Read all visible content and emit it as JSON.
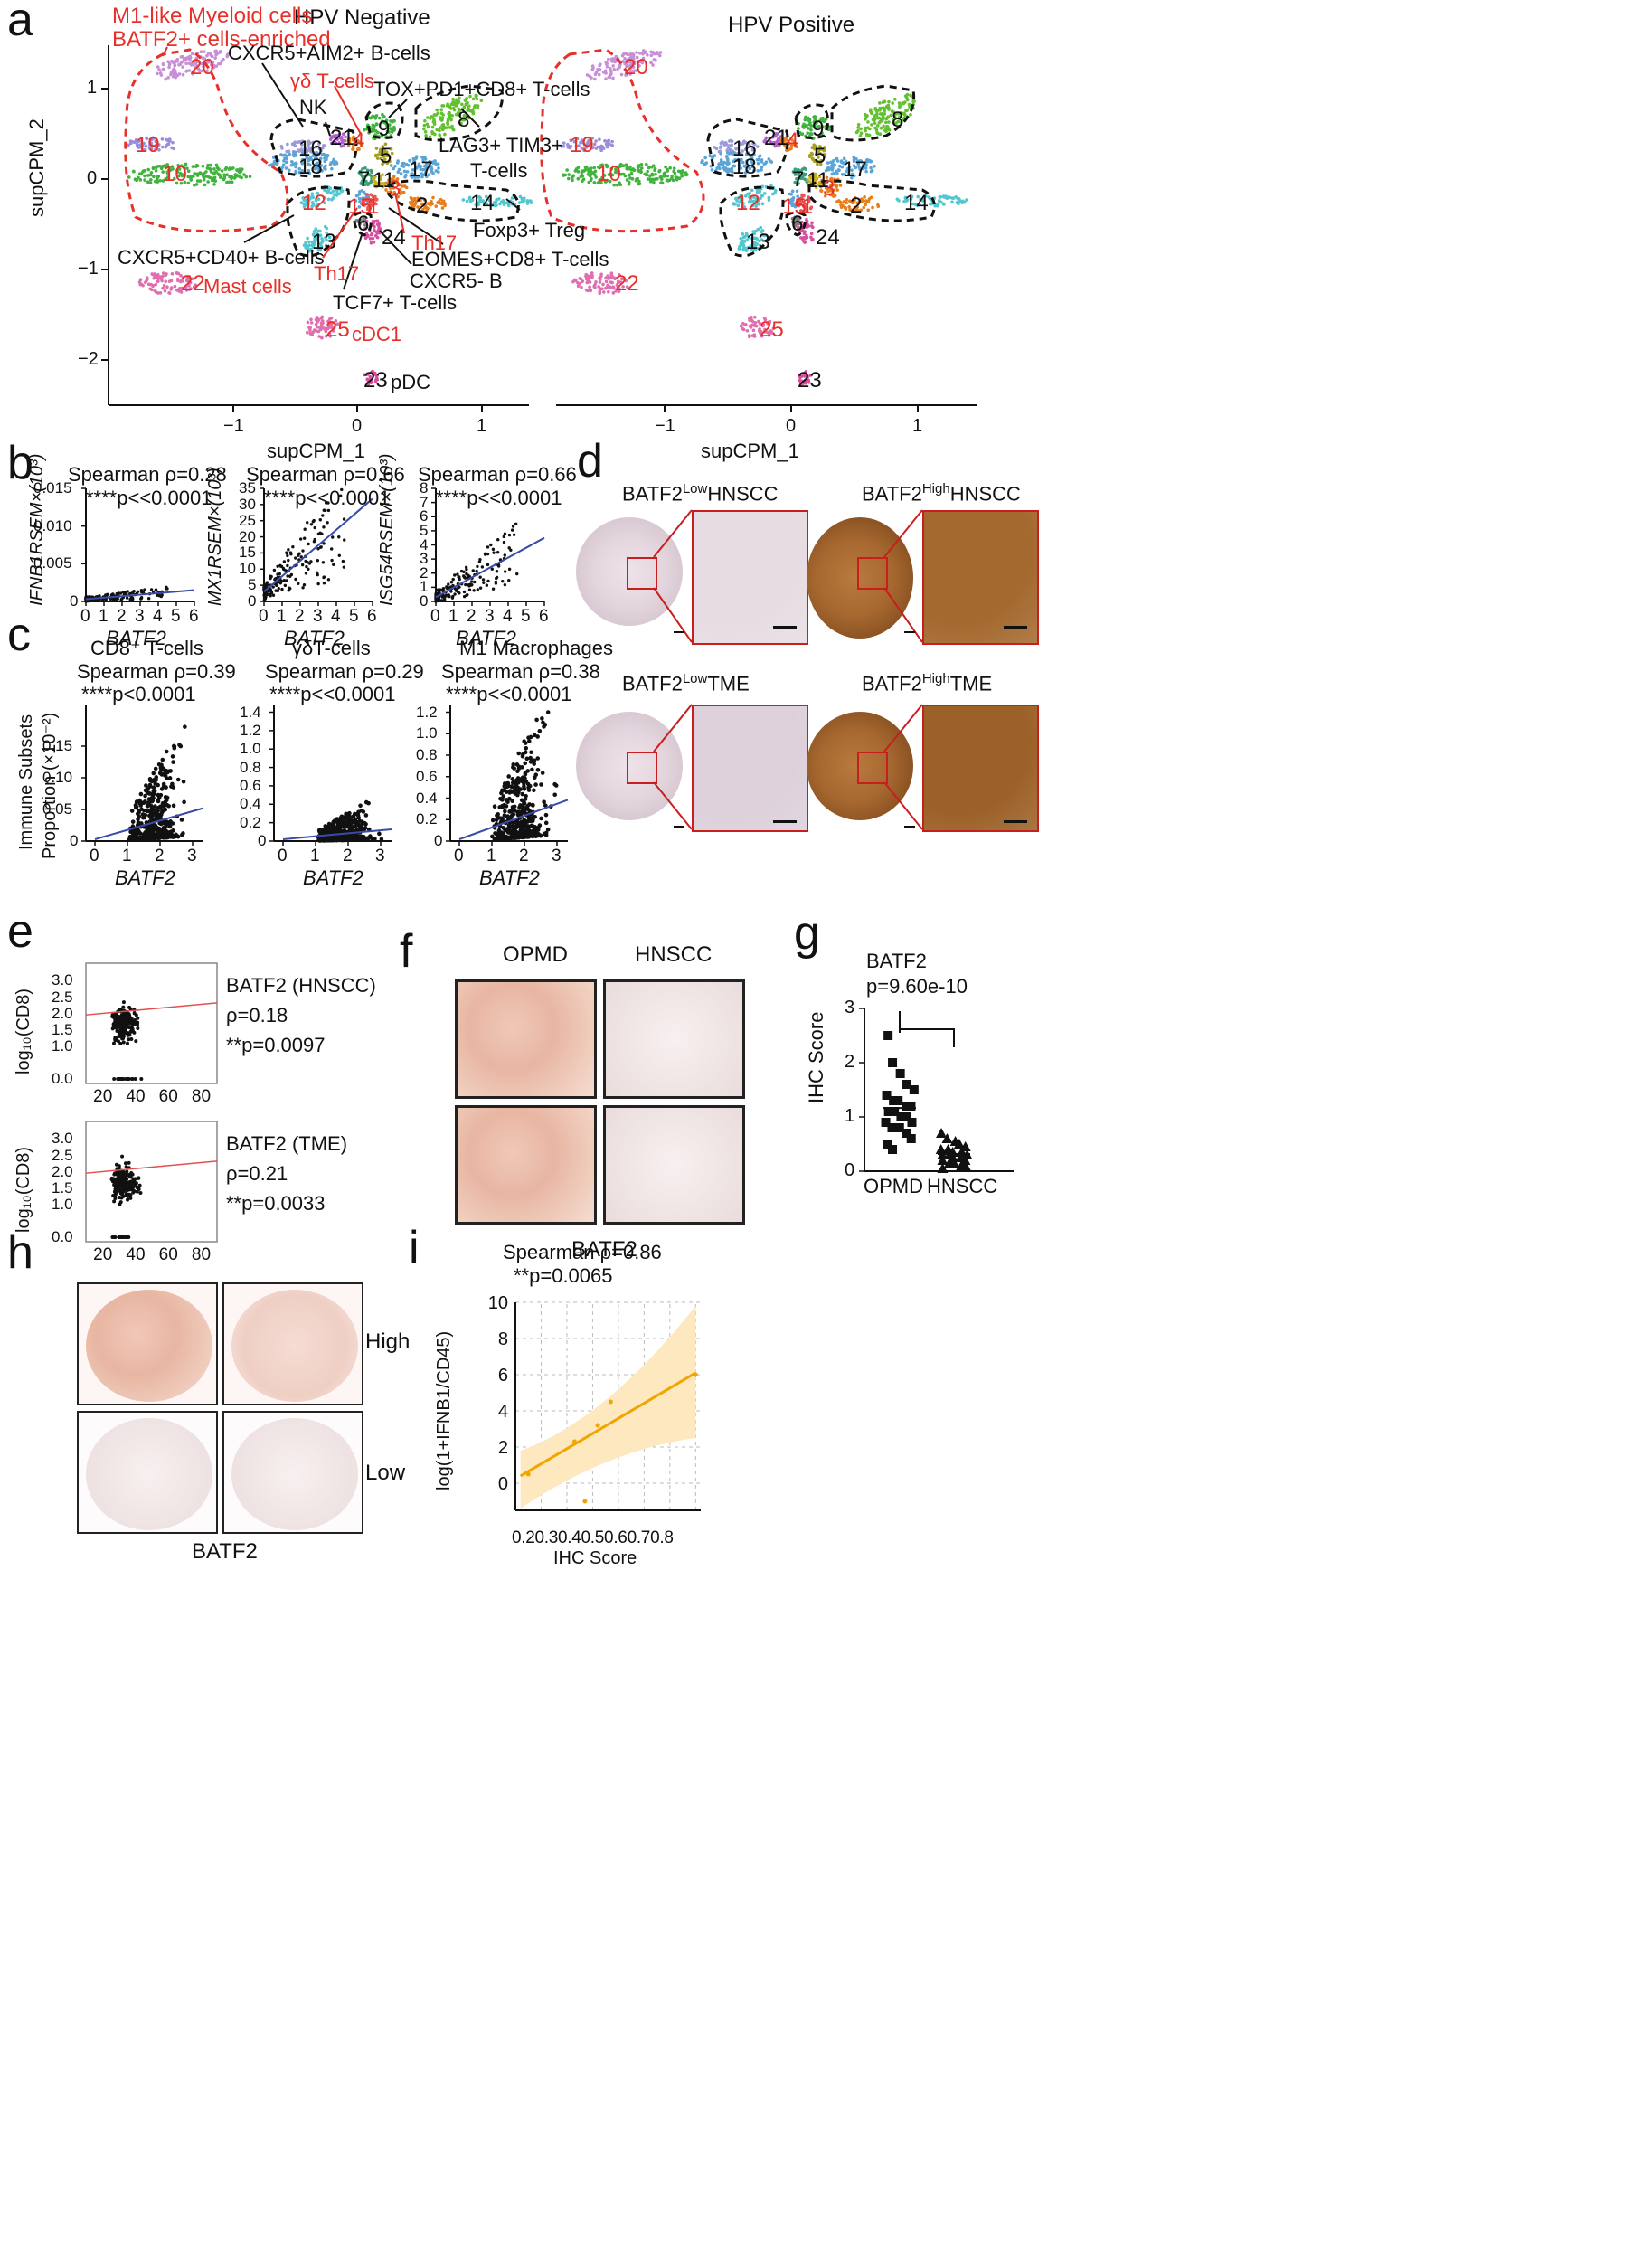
{
  "panels": {
    "a": "a",
    "b": "b",
    "c": "c",
    "d": "d",
    "e": "e",
    "f": "f",
    "g": "g",
    "h": "h",
    "i": "i"
  },
  "panel_a": {
    "title_left": "HPV Negative",
    "title_right": "HPV Positive",
    "xlabel": "supCPM_1",
    "ylabel": "supCPM_2",
    "yticks": [
      "1",
      "0",
      "−1",
      "−2"
    ],
    "xticks": [
      "−1",
      "0",
      "1"
    ],
    "clusters_left": [
      "20",
      "19",
      "10",
      "16",
      "18",
      "21",
      "4",
      "9",
      "8",
      "5",
      "17",
      "7",
      "11",
      "3",
      "2",
      "14",
      "12",
      "15",
      "1",
      "13",
      "6",
      "24",
      "22",
      "25",
      "23"
    ],
    "clusters_right": [
      "20",
      "19",
      "10",
      "16",
      "18",
      "21",
      "4",
      "9",
      "8",
      "5",
      "17",
      "7",
      "11",
      "3",
      "2",
      "14",
      "12",
      "15",
      "1",
      "13",
      "6",
      "24",
      "22",
      "25",
      "23"
    ],
    "annotations": {
      "m1_myeloid": "M1-like Myeloid cells",
      "batf2_enriched": "BATF2+ cells-enriched",
      "cxcr5_aim2": "CXCR5+AIM2+ B-cells",
      "gd_tcells": "γδ T-cells",
      "nk": "NK",
      "tox": "TOX+PD1+CD8+ T-cells",
      "lag3": "LAG3+ TIM3+",
      "tcells": "T-cells",
      "foxp3": "Foxp3+ Treg",
      "th17_right": "Th17",
      "eomes": "EOMES+CD8+ T-cells",
      "cxcr5_cd40": "CXCR5+CD40+ B-cells",
      "th17_left": "Th17",
      "cxcr5_neg": "CXCR5- B",
      "mast": "Mast cells",
      "tcf7": "TCF7+ T-cells",
      "cdc1": "cDC1",
      "pdc": "pDC"
    },
    "colors": {
      "red": "#e8302a",
      "black": "#111111"
    }
  },
  "panel_b": {
    "plots": [
      {
        "title1": "Spearman ρ=0.28",
        "title2": "****p<<0.0001",
        "ylabel": "IFNB1RSEM×(10³)",
        "xlabel": "BATF2",
        "yticks": [
          "0",
          "0.005",
          "0.010",
          "0.015"
        ],
        "xticks": [
          "0",
          "1",
          "2",
          "3",
          "4",
          "5",
          "6"
        ]
      },
      {
        "title1": "Spearman ρ=0.66",
        "title2": "****p<<0.0001",
        "ylabel": "MX1RSEM×(10³)",
        "xlabel": "BATF2",
        "yticks": [
          "0",
          "5",
          "10",
          "15",
          "20",
          "25",
          "30",
          "35"
        ],
        "xticks": [
          "0",
          "1",
          "2",
          "3",
          "4",
          "5",
          "6"
        ]
      },
      {
        "title1": "Spearman ρ=0.66",
        "title2": "****p<<0.0001",
        "ylabel": "ISG54RSEM×(10³)",
        "xlabel": "BATF2",
        "yticks": [
          "0",
          "1",
          "2",
          "3",
          "4",
          "5",
          "6",
          "7",
          "8"
        ],
        "xticks": [
          "0",
          "1",
          "2",
          "3",
          "4",
          "5",
          "6"
        ]
      }
    ]
  },
  "panel_c": {
    "ylabel1": "Immune Subsets",
    "ylabel2": "Proportion (×10⁻²)",
    "plots": [
      {
        "subtitle": "CD8⁺ T-cells",
        "title1": "Spearman ρ=0.39",
        "title2": "****p<0.0001",
        "xlabel": "BATF2",
        "yticks": [
          "0",
          "0.05",
          "0.10",
          "0.15"
        ],
        "xticks": [
          "0",
          "1",
          "2",
          "3"
        ]
      },
      {
        "subtitle": "γδT-cells",
        "title1": "Spearman ρ=0.29",
        "title2": "****p<<0.0001",
        "xlabel": "BATF2",
        "yticks": [
          "0",
          "0.2",
          "0.4",
          "0.6",
          "0.8",
          "1.0",
          "1.2",
          "1.4"
        ],
        "xticks": [
          "0",
          "1",
          "2",
          "3"
        ]
      },
      {
        "subtitle": "M1 Macrophages",
        "title1": "Spearman ρ=0.38",
        "title2": "****p<<0.0001",
        "xlabel": "BATF2",
        "yticks": [
          "0",
          "0.2",
          "0.4",
          "0.6",
          "0.8",
          "1.0",
          "1.2"
        ],
        "xticks": [
          "0",
          "1",
          "2",
          "3"
        ]
      }
    ]
  },
  "panel_d": {
    "labels": [
      {
        "base": "BATF2",
        "sup": "Low",
        "rest": "HNSCC"
      },
      {
        "base": "BATF2",
        "sup": "High",
        "rest": "HNSCC"
      },
      {
        "base": "BATF2",
        "sup": "Low",
        "rest": "TME"
      },
      {
        "base": "BATF2",
        "sup": "High",
        "rest": "TME"
      }
    ]
  },
  "panel_e": {
    "plots": [
      {
        "ylabel": "log₁₀(CD8)",
        "name": "BATF2 (HNSCC)",
        "rho": "ρ=0.18",
        "p": "**p=0.0097",
        "yticks": [
          "0.0",
          "1.0",
          "1.5",
          "2.0",
          "2.5",
          "3.0"
        ],
        "xticks": [
          "20",
          "40",
          "60",
          "80"
        ]
      },
      {
        "ylabel": "log₁₀(CD8)",
        "name": "BATF2 (TME)",
        "rho": "ρ=0.21",
        "p": "**p=0.0033",
        "yticks": [
          "0.0",
          "1.0",
          "1.5",
          "2.0",
          "2.5",
          "3.0"
        ],
        "xticks": [
          "20",
          "40",
          "60",
          "80"
        ]
      }
    ]
  },
  "panel_f": {
    "col1": "OPMD",
    "col2": "HNSCC",
    "caption": "BATF2"
  },
  "panel_g": {
    "title": "BATF2",
    "pvalue": "p=9.60e-10",
    "ylabel": "IHC Score",
    "yticks": [
      "0",
      "1",
      "2",
      "3"
    ],
    "groups": [
      "OPMD",
      "HNSCC"
    ]
  },
  "panel_h": {
    "high": "High",
    "low": "Low",
    "caption": "BATF2"
  },
  "panel_i": {
    "title1": "Spearman ρ=0.86",
    "title2": "**p=0.0065",
    "ylabel": "log(1+IFNB1/CD45)",
    "xlabel": "IHC Score",
    "yticks": [
      "0",
      "2",
      "4",
      "6",
      "8",
      "10"
    ],
    "xticks": [
      "0.2",
      "0.3",
      "0.4",
      "0.5",
      "0.6",
      "0.7",
      "0.8"
    ],
    "xtick_row": "0.20.30.40.50.60.70.8",
    "colors": {
      "line": "#f0a500",
      "band": "#fde8c0"
    }
  },
  "chart_data": [
    {
      "type": "scatter",
      "panel": "g",
      "series": [
        {
          "name": "OPMD",
          "values": [
            2.5,
            2.0,
            1.8,
            1.6,
            1.5,
            1.4,
            1.3,
            1.3,
            1.2,
            1.2,
            1.1,
            1.1,
            1.0,
            1.0,
            0.9,
            0.9,
            0.8,
            0.8,
            0.7,
            0.6,
            0.5,
            0.4
          ]
        },
        {
          "name": "HNSCC",
          "values": [
            0.7,
            0.6,
            0.55,
            0.5,
            0.45,
            0.4,
            0.4,
            0.35,
            0.35,
            0.3,
            0.3,
            0.3,
            0.25,
            0.25,
            0.2,
            0.2,
            0.15,
            0.15,
            0.1,
            0.1,
            0.05
          ]
        }
      ],
      "ylim": [
        0,
        3
      ]
    },
    {
      "type": "scatter",
      "panel": "i",
      "x": [
        0.15,
        0.33,
        0.37,
        0.42,
        0.47,
        0.8
      ],
      "y": [
        0.5,
        2.3,
        -1.0,
        3.2,
        4.5,
        6.0
      ],
      "xlim": [
        0.1,
        0.82
      ],
      "ylim": [
        -1.5,
        10
      ]
    }
  ]
}
